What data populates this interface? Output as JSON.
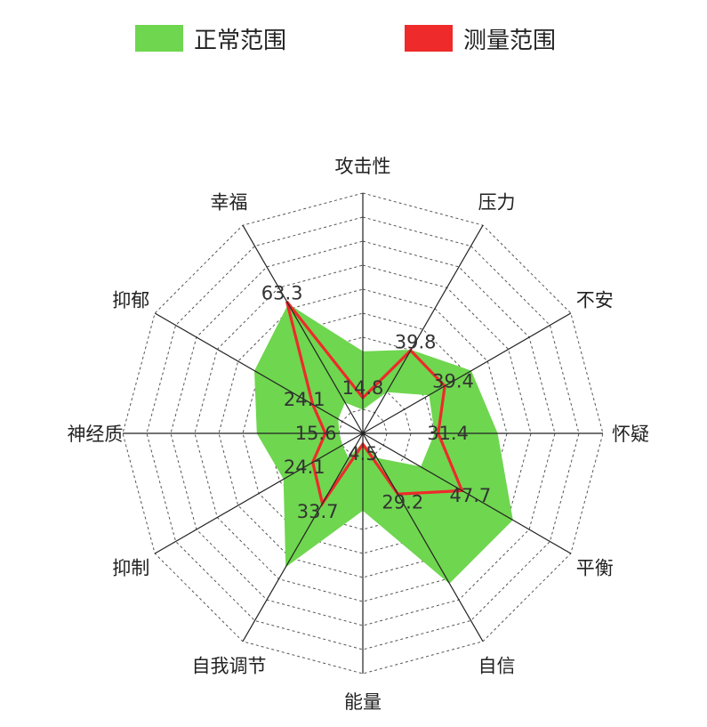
{
  "chart_data": {
    "type": "radar",
    "axes": [
      "攻击性",
      "压力",
      "不安",
      "怀疑",
      "平衡",
      "自信",
      "能量",
      "自我调节",
      "抑制",
      "神经质",
      "抑郁",
      "幸福"
    ],
    "rlim": [
      0,
      100
    ],
    "grid_rings": 10,
    "grid_style": "dashed",
    "legend_position": "top",
    "series": [
      {
        "name": "正常范围",
        "kind": "band",
        "color": "#6fd64f",
        "lower": [
          10,
          20,
          32,
          30,
          28,
          12,
          4,
          12,
          10,
          10,
          12,
          15
        ],
        "upper": [
          34,
          40,
          52,
          56,
          72,
          72,
          32,
          64,
          38,
          44,
          52,
          62
        ]
      },
      {
        "name": "测量范围",
        "kind": "line",
        "color": "#ee2a2a",
        "values": [
          14.8,
          39.8,
          39.4,
          31.4,
          47.7,
          29.2,
          4.5,
          33.7,
          24.1,
          15.6,
          24.1,
          63.3
        ],
        "labels": [
          "14.8",
          "39.8",
          "39.4",
          "31.4",
          "47.7",
          "29.2",
          "4.5",
          "33.7",
          "24.1",
          "15.6",
          "24.1",
          "63.3"
        ]
      }
    ]
  }
}
